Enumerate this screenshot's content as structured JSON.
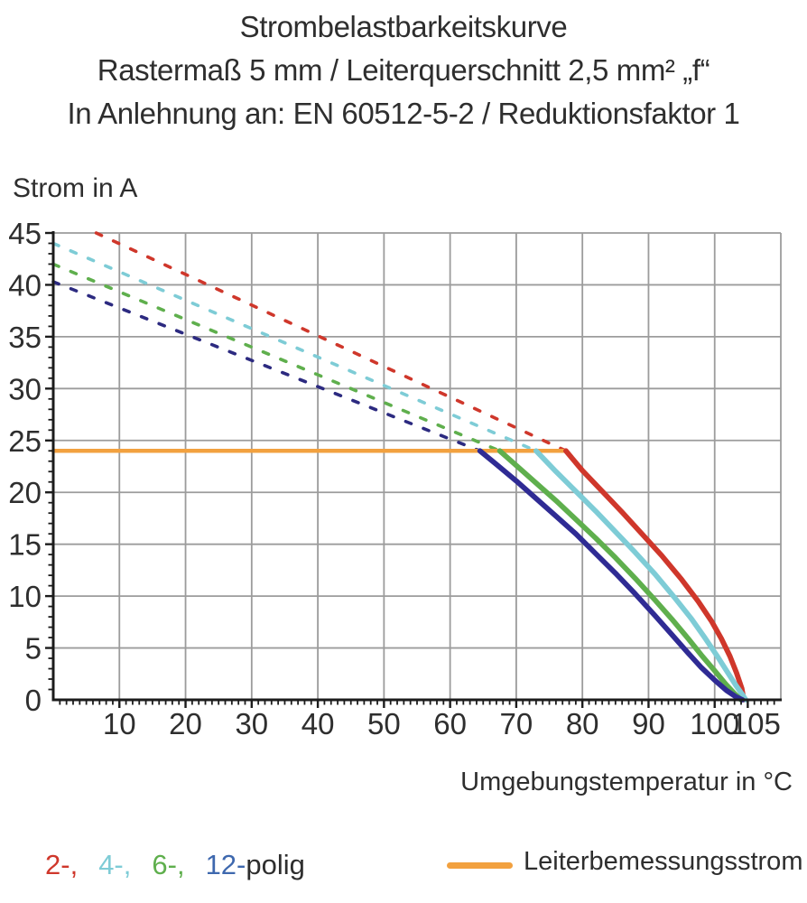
{
  "title": {
    "line1": "Strombelastbarkeitskurve",
    "line2": "Rastermaß 5 mm / Leiterquerschnitt 2,5 mm² „f“",
    "line3": "In Anlehnung an: EN 60512-5-2 / Reduktionsfaktor 1"
  },
  "chart_data": {
    "type": "line",
    "title": "Strombelastbarkeitskurve",
    "xlabel": "Umgebungstemperatur in °C",
    "ylabel": "Strom in A",
    "xlim": [
      0,
      110
    ],
    "ylim": [
      0,
      45
    ],
    "grid": true,
    "x_gridline_step": 10,
    "y_gridline_step": 5,
    "x_tick_labels": [
      10,
      20,
      30,
      40,
      50,
      60,
      70,
      80,
      90,
      100,
      105
    ],
    "y_tick_labels": [
      0,
      5,
      10,
      15,
      20,
      25,
      30,
      35,
      40,
      45
    ],
    "rated_current_A": 24,
    "series": [
      {
        "name": "2-polig Strombelastbarkeit (gestrichelt, oberhalb Leiterbemessungsstrom)",
        "style": "dashed",
        "color": "#cf372b",
        "points": [
          [
            6.5,
            45
          ],
          [
            77.5,
            24
          ]
        ]
      },
      {
        "name": "4-polig Strombelastbarkeit (gestrichelt, oberhalb Leiterbemessungsstrom)",
        "style": "dashed",
        "color": "#7eccd6",
        "points": [
          [
            0,
            44
          ],
          [
            73,
            24
          ]
        ]
      },
      {
        "name": "6-polig Strombelastbarkeit (gestrichelt, oberhalb Leiterbemessungsstrom)",
        "style": "dashed",
        "color": "#5faf4d",
        "points": [
          [
            0,
            42
          ],
          [
            67.5,
            24
          ]
        ]
      },
      {
        "name": "12-polig Strombelastbarkeit (gestrichelt, oberhalb Leiterbemessungsstrom)",
        "style": "dashed",
        "color": "#2c2a80",
        "points": [
          [
            0,
            40.3
          ],
          [
            64.5,
            24
          ]
        ]
      },
      {
        "name": "Leiterbemessungsstrom 24 A",
        "style": "rated",
        "color": "#f2a13f",
        "points": [
          [
            0,
            24
          ],
          [
            77.5,
            24
          ]
        ]
      },
      {
        "name": "2-polig Derating-Kurve",
        "style": "solid",
        "color": "#cf372b",
        "points": [
          [
            77.5,
            24
          ],
          [
            80,
            22.1
          ],
          [
            83,
            20.1
          ],
          [
            86,
            18.1
          ],
          [
            89,
            16.0
          ],
          [
            92,
            13.9
          ],
          [
            95,
            11.6
          ],
          [
            97.5,
            9.5
          ],
          [
            99.5,
            7.6
          ],
          [
            101,
            5.9
          ],
          [
            102.3,
            4.2
          ],
          [
            103.3,
            2.6
          ],
          [
            104.1,
            1.1
          ],
          [
            104.4,
            0
          ]
        ]
      },
      {
        "name": "4-polig Derating-Kurve",
        "style": "solid",
        "color": "#7eccd6",
        "points": [
          [
            73,
            24
          ],
          [
            76,
            22.0
          ],
          [
            79,
            20.1
          ],
          [
            82,
            18.2
          ],
          [
            85,
            16.2
          ],
          [
            88,
            14.2
          ],
          [
            91,
            12.1
          ],
          [
            94,
            9.8
          ],
          [
            96.5,
            7.8
          ],
          [
            98.5,
            6.0
          ],
          [
            100.3,
            4.3
          ],
          [
            101.8,
            2.8
          ],
          [
            103.2,
            1.4
          ],
          [
            104.2,
            0.5
          ],
          [
            104.7,
            0
          ]
        ]
      },
      {
        "name": "6-polig Derating-Kurve",
        "style": "solid",
        "color": "#5faf4d",
        "points": [
          [
            67.5,
            24
          ],
          [
            70,
            22.6
          ],
          [
            73,
            20.9
          ],
          [
            76,
            19.2
          ],
          [
            79,
            17.4
          ],
          [
            82,
            15.6
          ],
          [
            85,
            13.7
          ],
          [
            88,
            11.7
          ],
          [
            91,
            9.6
          ],
          [
            93.5,
            7.8
          ],
          [
            96,
            5.9
          ],
          [
            98,
            4.3
          ],
          [
            100,
            2.8
          ],
          [
            101.7,
            1.5
          ],
          [
            103,
            0.6
          ],
          [
            104,
            0
          ]
        ]
      },
      {
        "name": "12-polig Derating-Kurve",
        "style": "solid",
        "color": "#2f2b94",
        "points": [
          [
            64.5,
            24
          ],
          [
            67,
            22.7
          ],
          [
            70,
            21.1
          ],
          [
            73,
            19.4
          ],
          [
            76,
            17.7
          ],
          [
            79,
            16.0
          ],
          [
            82,
            14.1
          ],
          [
            85,
            12.2
          ],
          [
            88,
            10.2
          ],
          [
            91,
            8.1
          ],
          [
            93.5,
            6.3
          ],
          [
            96,
            4.5
          ],
          [
            98,
            3.1
          ],
          [
            100,
            1.9
          ],
          [
            101.8,
            0.9
          ],
          [
            103.2,
            0.3
          ],
          [
            104.2,
            0
          ]
        ]
      }
    ]
  },
  "legend": {
    "poles": [
      {
        "label": "2-,",
        "color": "#cf372b"
      },
      {
        "label": "4-,",
        "color": "#7eccd6"
      },
      {
        "label": "6-,",
        "color": "#5faf4d"
      },
      {
        "label": "12-",
        "color": "#3e68ae"
      }
    ],
    "poles_suffix": "polig",
    "rated_current_label": "Leiterbemessungsstrom",
    "rated_current_color": "#f2a13f"
  },
  "colors": {
    "grid": "#9c9c9c",
    "axis": "#1c1c1c",
    "text": "#2e2e2e"
  }
}
